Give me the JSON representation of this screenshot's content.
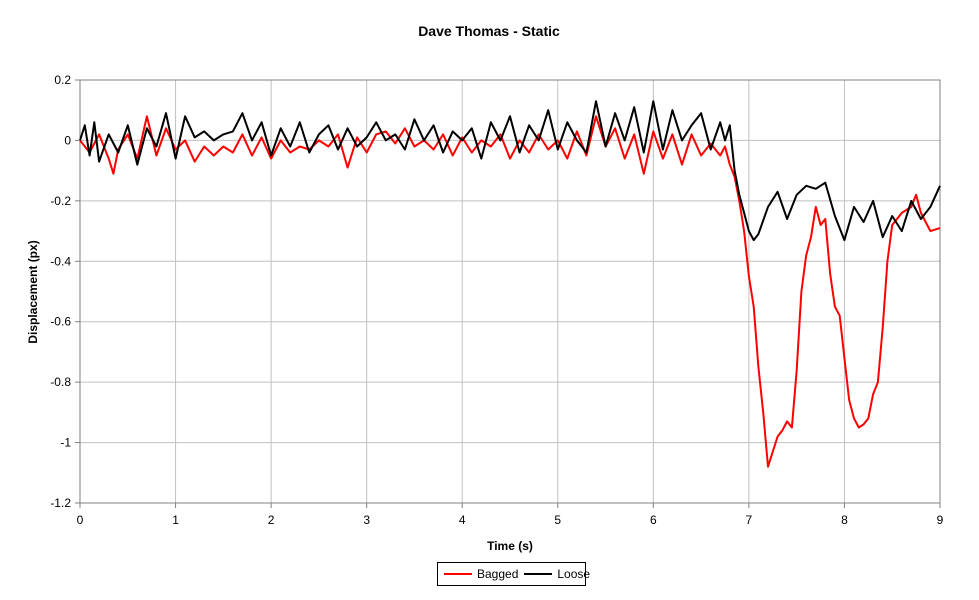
{
  "chart_data": {
    "type": "line",
    "title": "Dave Thomas - Static",
    "xlabel": "Time (s)",
    "ylabel": "Displacement (px)",
    "xlim": [
      0,
      9
    ],
    "ylim": [
      -1.2,
      0.2
    ],
    "xticks": [
      "0",
      "1",
      "2",
      "3",
      "4",
      "5",
      "6",
      "7",
      "8",
      "9"
    ],
    "yticks": [
      "0.2",
      "0",
      "-0.2",
      "-0.4",
      "-0.6",
      "-0.8",
      "-1",
      "-1.2"
    ],
    "grid": true,
    "legend_position": "bottom",
    "series": [
      {
        "name": "Bagged",
        "color": "#ff0000",
        "x": [
          0,
          0.1,
          0.2,
          0.3,
          0.35,
          0.4,
          0.5,
          0.6,
          0.7,
          0.8,
          0.9,
          1.0,
          1.1,
          1.2,
          1.3,
          1.4,
          1.5,
          1.6,
          1.7,
          1.8,
          1.9,
          2.0,
          2.1,
          2.2,
          2.3,
          2.4,
          2.5,
          2.6,
          2.7,
          2.8,
          2.9,
          3.0,
          3.1,
          3.2,
          3.3,
          3.4,
          3.5,
          3.6,
          3.7,
          3.8,
          3.9,
          4.0,
          4.1,
          4.2,
          4.3,
          4.4,
          4.5,
          4.6,
          4.7,
          4.8,
          4.9,
          5.0,
          5.1,
          5.2,
          5.3,
          5.4,
          5.5,
          5.6,
          5.7,
          5.8,
          5.9,
          6.0,
          6.1,
          6.2,
          6.3,
          6.4,
          6.5,
          6.6,
          6.7,
          6.75,
          6.8,
          6.85,
          6.9,
          6.95,
          7.0,
          7.05,
          7.1,
          7.15,
          7.2,
          7.3,
          7.35,
          7.4,
          7.45,
          7.5,
          7.55,
          7.6,
          7.65,
          7.7,
          7.75,
          7.8,
          7.85,
          7.9,
          7.95,
          8.0,
          8.05,
          8.1,
          8.15,
          8.2,
          8.25,
          8.3,
          8.35,
          8.4,
          8.45,
          8.5,
          8.55,
          8.6,
          8.7,
          8.75,
          8.8,
          8.9,
          9.0
        ],
        "y": [
          0,
          -0.04,
          0.02,
          -0.06,
          -0.11,
          -0.03,
          0.02,
          -0.06,
          0.08,
          -0.05,
          0.04,
          -0.03,
          0.0,
          -0.07,
          -0.02,
          -0.05,
          -0.02,
          -0.04,
          0.02,
          -0.05,
          0.01,
          -0.06,
          0.0,
          -0.04,
          -0.02,
          -0.03,
          0.0,
          -0.02,
          0.02,
          -0.09,
          0.01,
          -0.04,
          0.02,
          0.03,
          -0.01,
          0.04,
          -0.02,
          0.0,
          -0.03,
          0.02,
          -0.05,
          0.01,
          -0.04,
          0.0,
          -0.02,
          0.02,
          -0.06,
          0.0,
          -0.04,
          0.02,
          -0.03,
          0.0,
          -0.06,
          0.03,
          -0.05,
          0.08,
          -0.02,
          0.04,
          -0.06,
          0.02,
          -0.11,
          0.03,
          -0.06,
          0.02,
          -0.08,
          0.02,
          -0.05,
          -0.01,
          -0.05,
          -0.02,
          -0.08,
          -0.12,
          -0.2,
          -0.3,
          -0.45,
          -0.55,
          -0.75,
          -0.9,
          -1.08,
          -0.98,
          -0.96,
          -0.93,
          -0.95,
          -0.76,
          -0.5,
          -0.38,
          -0.32,
          -0.22,
          -0.28,
          -0.26,
          -0.44,
          -0.55,
          -0.58,
          -0.72,
          -0.86,
          -0.92,
          -0.95,
          -0.94,
          -0.92,
          -0.84,
          -0.8,
          -0.62,
          -0.4,
          -0.28,
          -0.26,
          -0.24,
          -0.22,
          -0.18,
          -0.24,
          -0.3,
          -0.29
        ]
      },
      {
        "name": "Loose",
        "color": "#000000",
        "x": [
          0,
          0.05,
          0.1,
          0.15,
          0.2,
          0.3,
          0.4,
          0.5,
          0.6,
          0.7,
          0.8,
          0.9,
          1.0,
          1.1,
          1.2,
          1.3,
          1.4,
          1.5,
          1.6,
          1.7,
          1.8,
          1.9,
          2.0,
          2.1,
          2.2,
          2.3,
          2.4,
          2.5,
          2.6,
          2.7,
          2.8,
          2.9,
          3.0,
          3.1,
          3.2,
          3.3,
          3.4,
          3.5,
          3.6,
          3.7,
          3.8,
          3.9,
          4.0,
          4.1,
          4.2,
          4.3,
          4.4,
          4.5,
          4.6,
          4.7,
          4.8,
          4.9,
          5.0,
          5.1,
          5.2,
          5.3,
          5.4,
          5.5,
          5.6,
          5.7,
          5.8,
          5.9,
          6.0,
          6.1,
          6.2,
          6.3,
          6.4,
          6.5,
          6.6,
          6.7,
          6.75,
          6.8,
          6.85,
          6.9,
          6.95,
          7.0,
          7.05,
          7.1,
          7.2,
          7.3,
          7.4,
          7.5,
          7.6,
          7.7,
          7.8,
          7.9,
          8.0,
          8.1,
          8.2,
          8.3,
          8.4,
          8.5,
          8.6,
          8.7,
          8.8,
          8.9,
          9.0
        ],
        "y": [
          0,
          0.05,
          -0.05,
          0.06,
          -0.07,
          0.02,
          -0.04,
          0.05,
          -0.08,
          0.04,
          -0.02,
          0.09,
          -0.06,
          0.08,
          0.01,
          0.03,
          0.0,
          0.02,
          0.03,
          0.09,
          0.0,
          0.06,
          -0.05,
          0.04,
          -0.02,
          0.06,
          -0.04,
          0.02,
          0.05,
          -0.03,
          0.04,
          -0.02,
          0.01,
          0.06,
          0.0,
          0.02,
          -0.03,
          0.07,
          0.0,
          0.05,
          -0.04,
          0.03,
          0.0,
          0.04,
          -0.06,
          0.06,
          0.0,
          0.08,
          -0.04,
          0.05,
          0.0,
          0.1,
          -0.03,
          0.06,
          0.0,
          -0.04,
          0.13,
          -0.02,
          0.09,
          0.0,
          0.11,
          -0.04,
          0.13,
          -0.03,
          0.1,
          0.0,
          0.05,
          0.09,
          -0.03,
          0.06,
          0.0,
          0.05,
          -0.1,
          -0.18,
          -0.24,
          -0.3,
          -0.33,
          -0.31,
          -0.22,
          -0.17,
          -0.26,
          -0.18,
          -0.15,
          -0.16,
          -0.14,
          -0.25,
          -0.33,
          -0.22,
          -0.27,
          -0.2,
          -0.32,
          -0.25,
          -0.3,
          -0.2,
          -0.26,
          -0.22,
          -0.15
        ]
      }
    ]
  }
}
